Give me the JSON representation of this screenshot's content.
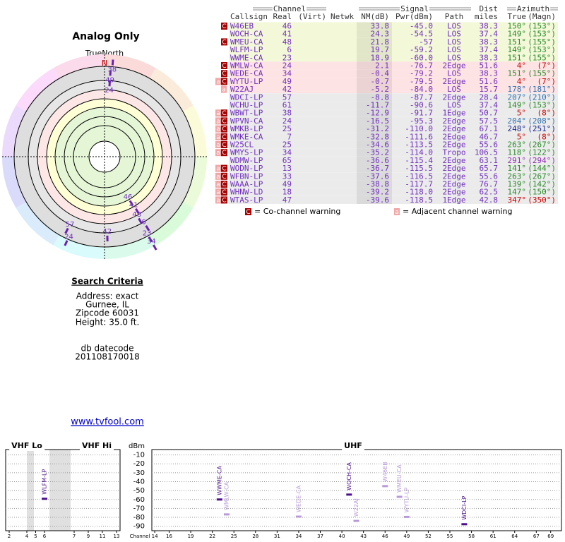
{
  "title": "Analog Only",
  "radar": {
    "north_label": "TrueNorth",
    "n": "N"
  },
  "table": {
    "groups": {
      "channel": "Channel",
      "signal": "Signal",
      "dist": "Dist",
      "azimuth": "Azimuth"
    },
    "columns": {
      "callsign": "Callsign",
      "real": "Real",
      "virt": "(Virt)",
      "netwk": "Netwk",
      "nm": "NM(dB)",
      "pwr": "Pwr(dBm)",
      "path": "Path",
      "dist": "miles",
      "true": "True",
      "magn": "(Magn)"
    },
    "rows": [
      {
        "w": [
          "C"
        ],
        "callsign": "W46EB",
        "real": 46,
        "nm": 33.8,
        "pwr": {
          "value": -45,
          "label": "-45.0"
        },
        "path": "LOS",
        "dist": 38.3,
        "az_true": {
          "value": 150,
          "label": "150°"
        },
        "az_magn": {
          "value": 153,
          "label": "(153°)"
        },
        "az_color": "#2a8a2a",
        "bg": "#f3f8d8"
      },
      {
        "w": [],
        "callsign": "WOCH-CA",
        "real": 41,
        "nm": 24.3,
        "pwr": -54.5,
        "path": "LOS",
        "dist": 37.4,
        "az_true": {
          "value": 149,
          "label": "149°"
        },
        "az_magn": {
          "value": 153,
          "label": "(153°)"
        },
        "az_color": "#2a8a2a",
        "bg": "#f3f8d8"
      },
      {
        "w": [
          "C"
        ],
        "callsign": "WMEU-CA",
        "real": 48,
        "nm": 21.8,
        "pwr": -57,
        "path": "LOS",
        "dist": 38.3,
        "az_true": {
          "value": 151,
          "label": "151°"
        },
        "az_magn": {
          "value": 155,
          "label": "(155°)"
        },
        "az_color": "#2a8a2a",
        "bg": "#f3f8d8"
      },
      {
        "w": [],
        "callsign": "WLFM-LP",
        "real": 6,
        "nm": 19.7,
        "pwr": -59.2,
        "path": "LOS",
        "dist": 37.4,
        "az_true": {
          "value": 149,
          "label": "149°"
        },
        "az_magn": {
          "value": 153,
          "label": "(153°)"
        },
        "az_color": "#2a8a2a",
        "bg": "#f3f8d8"
      },
      {
        "w": [],
        "callsign": "WWME-CA",
        "real": 23,
        "nm": 18.9,
        "pwr": {
          "value": -60,
          "label": "-60.0"
        },
        "path": "LOS",
        "dist": 38.3,
        "az_true": {
          "value": 151,
          "label": "151°"
        },
        "az_magn": {
          "value": 155,
          "label": "(155°)"
        },
        "az_color": "#2a8a2a",
        "bg": "#f3f8d8"
      },
      {
        "w": [
          "C"
        ],
        "callsign": "WMLW-CA",
        "real": 24,
        "nm": 2.1,
        "pwr": -76.7,
        "path": "2Edge",
        "dist": 51.6,
        "az_true": {
          "value": 4,
          "label": "4°"
        },
        "az_magn": {
          "value": 7,
          "label": "(7°)"
        },
        "az_color": "#d00000",
        "bg": "#fde3e3"
      },
      {
        "w": [
          "C"
        ],
        "callsign": "WEDE-CA",
        "real": 34,
        "nm": -0.4,
        "pwr": -79.2,
        "path": "LOS",
        "dist": 38.3,
        "az_true": {
          "value": 151,
          "label": "151°"
        },
        "az_magn": {
          "value": 155,
          "label": "(155°)"
        },
        "az_color": "#2a8a2a",
        "bg": "#fde3e3"
      },
      {
        "w": [
          "a",
          "C"
        ],
        "callsign": "WYTU-LP",
        "real": 49,
        "nm": -0.7,
        "pwr": -79.5,
        "path": "2Edge",
        "dist": 51.6,
        "az_true": {
          "value": 4,
          "label": "4°"
        },
        "az_magn": {
          "value": 7,
          "label": "(7°)"
        },
        "az_color": "#d00000",
        "bg": "#fde3e3"
      },
      {
        "w": [
          "a"
        ],
        "callsign": "W22AJ",
        "real": 42,
        "nm": -5.2,
        "pwr": {
          "value": -84,
          "label": "-84.0"
        },
        "path": "LOS",
        "dist": 15.7,
        "az_true": {
          "value": 178,
          "label": "178°"
        },
        "az_magn": {
          "value": 181,
          "label": "(181°)"
        },
        "az_color": "#3070b0",
        "bg": "#fde3e3"
      },
      {
        "w": [],
        "callsign": "WDCI-LP",
        "real": 57,
        "nm": -8.8,
        "pwr": -87.7,
        "path": "2Edge",
        "dist": 28.4,
        "az_true": {
          "value": 207,
          "label": "207°"
        },
        "az_magn": {
          "value": 210,
          "label": "(210°)"
        },
        "az_color": "#3070b0",
        "bg": "#ebebeb"
      },
      {
        "w": [],
        "callsign": "WCHU-LP",
        "real": 61,
        "nm": -11.7,
        "pwr": -90.6,
        "path": "LOS",
        "dist": 37.4,
        "az_true": {
          "value": 149,
          "label": "149°"
        },
        "az_magn": {
          "value": 153,
          "label": "(153°)"
        },
        "az_color": "#2a8a2a",
        "bg": "#ebebeb"
      },
      {
        "w": [
          "a",
          "C"
        ],
        "callsign": "WBWT-LP",
        "real": 38,
        "nm": -12.9,
        "pwr": -91.7,
        "path": "1Edge",
        "dist": 50.7,
        "az_true": {
          "value": 5,
          "label": "5°"
        },
        "az_magn": {
          "value": 8,
          "label": "(8°)"
        },
        "az_color": "#d00000",
        "bg": "#ebebeb"
      },
      {
        "w": [
          "a",
          "C"
        ],
        "callsign": "WPVN-CA",
        "real": 24,
        "nm": -16.5,
        "pwr": -95.3,
        "path": "2Edge",
        "dist": 57.5,
        "az_true": {
          "value": 204,
          "label": "204°"
        },
        "az_magn": {
          "value": 208,
          "label": "(208°)"
        },
        "az_color": "#3070b0",
        "bg": "#ebebeb"
      },
      {
        "w": [
          "a",
          "C"
        ],
        "callsign": "WMKB-LP",
        "real": 25,
        "nm": -31.2,
        "pwr": {
          "value": -110,
          "label": "-110.0"
        },
        "path": "2Edge",
        "dist": 67.1,
        "az_true": {
          "value": 248,
          "label": "248°"
        },
        "az_magn": {
          "value": 251,
          "label": "(251°)"
        },
        "az_color": "#1a2a90",
        "bg": "#ebebeb"
      },
      {
        "w": [
          "a",
          "C"
        ],
        "callsign": "WMKE-CA",
        "real": 7,
        "nm": -32.8,
        "pwr": -111.6,
        "path": "2Edge",
        "dist": 46.7,
        "az_true": {
          "value": 5,
          "label": "5°"
        },
        "az_magn": {
          "value": 8,
          "label": "(8°)"
        },
        "az_color": "#d00000",
        "bg": "#ebebeb"
      },
      {
        "w": [
          "a",
          "C"
        ],
        "callsign": "W25CL",
        "real": 25,
        "nm": -34.6,
        "pwr": -113.5,
        "path": "2Edge",
        "dist": 55.6,
        "az_true": {
          "value": 263,
          "label": "263°"
        },
        "az_magn": {
          "value": 267,
          "label": "(267°)"
        },
        "az_color": "#2a8a2a",
        "bg": "#ebebeb"
      },
      {
        "w": [
          "a",
          "C"
        ],
        "callsign": "WMYS-LP",
        "real": 34,
        "nm": -35.2,
        "pwr": {
          "value": -114,
          "label": "-114.0"
        },
        "path": "Tropo",
        "dist": 106.5,
        "az_true": {
          "value": 118,
          "label": "118°"
        },
        "az_magn": {
          "value": 122,
          "label": "(122°)"
        },
        "az_color": "#2a8a2a",
        "bg": "#ebebeb"
      },
      {
        "w": [],
        "callsign": "WDMW-LP",
        "real": 65,
        "nm": -36.6,
        "pwr": -115.4,
        "path": "2Edge",
        "dist": 63.1,
        "az_true": {
          "value": 291,
          "label": "291°"
        },
        "az_magn": {
          "value": 294,
          "label": "(294°)"
        },
        "az_color": "#9030b0",
        "bg": "#ebebeb"
      },
      {
        "w": [
          "a",
          "C"
        ],
        "callsign": "WODN-LP",
        "real": 13,
        "nm": -36.7,
        "pwr": -115.5,
        "path": "2Edge",
        "dist": 65.7,
        "az_true": {
          "value": 141,
          "label": "141°"
        },
        "az_magn": {
          "value": 144,
          "label": "(144°)"
        },
        "az_color": "#2a8a2a",
        "bg": "#ebebeb"
      },
      {
        "w": [
          "a",
          "C"
        ],
        "callsign": "WFBN-LP",
        "real": 33,
        "nm": -37.6,
        "pwr": -116.5,
        "path": "2Edge",
        "dist": 55.6,
        "az_true": {
          "value": 263,
          "label": "263°"
        },
        "az_magn": {
          "value": 267,
          "label": "(267°)"
        },
        "az_color": "#2a8a2a",
        "bg": "#ebebeb"
      },
      {
        "w": [
          "a",
          "C"
        ],
        "callsign": "WAAA-LP",
        "real": 49,
        "nm": -38.8,
        "pwr": -117.7,
        "path": "2Edge",
        "dist": 76.7,
        "az_true": {
          "value": 139,
          "label": "139°"
        },
        "az_magn": {
          "value": 142,
          "label": "(142°)"
        },
        "az_color": "#2a8a2a",
        "bg": "#ebebeb"
      },
      {
        "w": [
          "a",
          "C"
        ],
        "callsign": "WHNW-LD",
        "real": 18,
        "nm": -39.2,
        "pwr": {
          "value": -118,
          "label": "-118.0"
        },
        "path": "2Edge",
        "dist": 62.5,
        "az_true": {
          "value": 147,
          "label": "147°"
        },
        "az_magn": {
          "value": 150,
          "label": "(150°)"
        },
        "az_color": "#2a8a2a",
        "bg": "#ebebeb"
      },
      {
        "w": [
          "a",
          "C"
        ],
        "callsign": "WTAS-LP",
        "real": 47,
        "nm": -39.6,
        "pwr": -118.5,
        "path": "1Edge",
        "dist": 42.8,
        "az_true": {
          "value": 347,
          "label": "347°"
        },
        "az_magn": {
          "value": 350,
          "label": "(350°)"
        },
        "az_color": "#d00000",
        "bg": "#ebebeb"
      }
    ]
  },
  "legend": {
    "co_mark": "C",
    "co_text": "= Co-channel warning",
    "adj_mark": "a",
    "adj_text": "= Adjacent channel warning",
    "co_color": "#a80000",
    "adj_color": "#f2a6a6"
  },
  "search": {
    "heading": "Search Criteria",
    "lines": [
      "Address: exact",
      "Gurnee, IL",
      "Zipcode 60031",
      "Height: 35.0 ft."
    ],
    "datecode_label": "db datecode",
    "datecode": "201108170018"
  },
  "link": "www.tvfool.com",
  "spectrum": {
    "vhf_lo": "VHF Lo",
    "vhf_hi": "VHF Hi",
    "uhf": "UHF",
    "unit": "dBm",
    "x_label": "Channel",
    "ylim": [
      -4,
      -95
    ],
    "yticks": [
      -10,
      -20,
      -30,
      -40,
      -50,
      -60,
      -70,
      -80,
      -90
    ],
    "grid": true,
    "lo_xlim": [
      1.6,
      6.4
    ],
    "lo_xticks": [
      2,
      4,
      5,
      6
    ],
    "hi_xlim": [
      6.5,
      13.5
    ],
    "hi_xticks": [
      7,
      9,
      11,
      13
    ],
    "uhf_xlim": [
      13.6,
      70.5
    ],
    "uhf_xticks": [
      14,
      16,
      19,
      22,
      25,
      28,
      31,
      34,
      37,
      40,
      43,
      46,
      49,
      52,
      55,
      58,
      61,
      64,
      67,
      69
    ],
    "strong_color": "#4b0f8c",
    "weak_color": "#b89ad8"
  }
}
